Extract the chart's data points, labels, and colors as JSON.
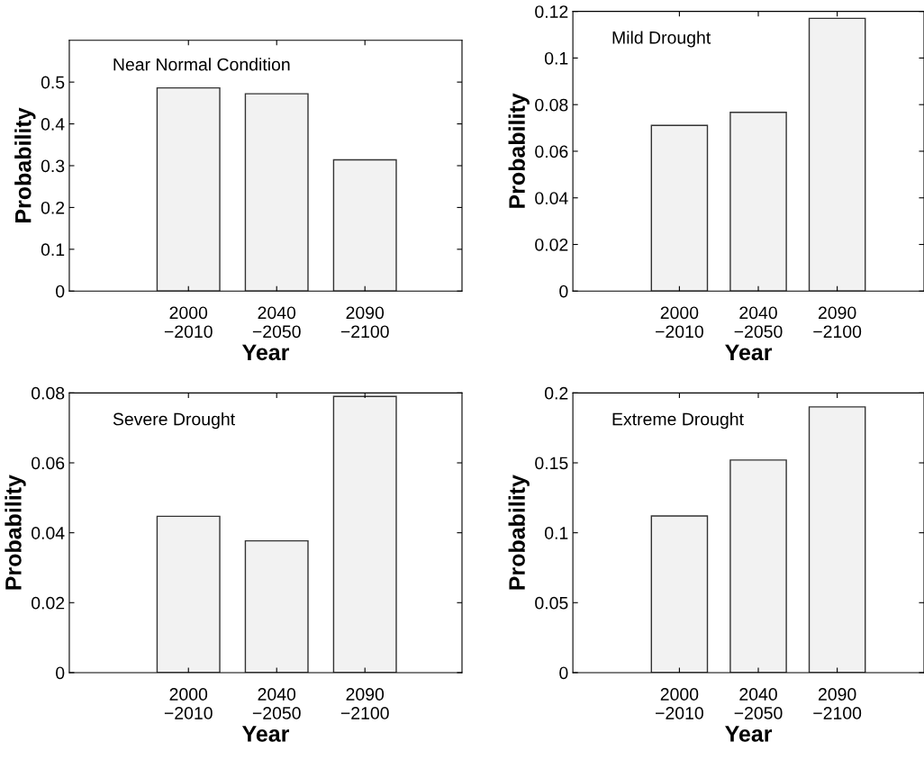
{
  "chart_data": [
    {
      "type": "bar",
      "annotations": [
        "Near Normal Condition"
      ],
      "xlabel": "Year",
      "ylabel": "Probability",
      "categories": [
        "2000\n−2010",
        "2040\n−2050",
        "2090\n−2100"
      ],
      "values": [
        0.486,
        0.472,
        0.314
      ],
      "color": "#f2f2f2",
      "ylim": [
        0,
        0.6
      ],
      "yticks": [
        0,
        0.1,
        0.2,
        0.3,
        0.4,
        0.5
      ],
      "grid": false
    },
    {
      "type": "bar",
      "annotations": [
        "Mild Drought"
      ],
      "xlabel": "Year",
      "ylabel": "Probability",
      "categories": [
        "2000\n−2010",
        "2040\n−2050",
        "2090\n−2100"
      ],
      "values": [
        0.0711,
        0.0767,
        0.117
      ],
      "color": "#f2f2f2",
      "ylim": [
        0,
        0.12
      ],
      "yticks": [
        0,
        0.02,
        0.04,
        0.06,
        0.08,
        0.1,
        0.12
      ],
      "grid": false
    },
    {
      "type": "bar",
      "annotations": [
        "Severe Drought"
      ],
      "xlabel": "Year",
      "ylabel": "Probability",
      "categories": [
        "2000\n−2010",
        "2040\n−2050",
        "2090\n−2100"
      ],
      "values": [
        0.0447,
        0.0377,
        0.079
      ],
      "color": "#f2f2f2",
      "ylim": [
        0,
        0.08
      ],
      "yticks": [
        0,
        0.02,
        0.04,
        0.06,
        0.08
      ],
      "grid": false
    },
    {
      "type": "bar",
      "annotations": [
        "Extreme Drought"
      ],
      "xlabel": "Year",
      "ylabel": "Probability",
      "categories": [
        "2000\n−2010",
        "2040\n−2050",
        "2090\n−2100"
      ],
      "values": [
        0.112,
        0.152,
        0.19
      ],
      "color": "#f2f2f2",
      "ylim": [
        0,
        0.2
      ],
      "yticks": [
        0,
        0.05,
        0.1,
        0.15,
        0.2
      ],
      "grid": false
    }
  ]
}
